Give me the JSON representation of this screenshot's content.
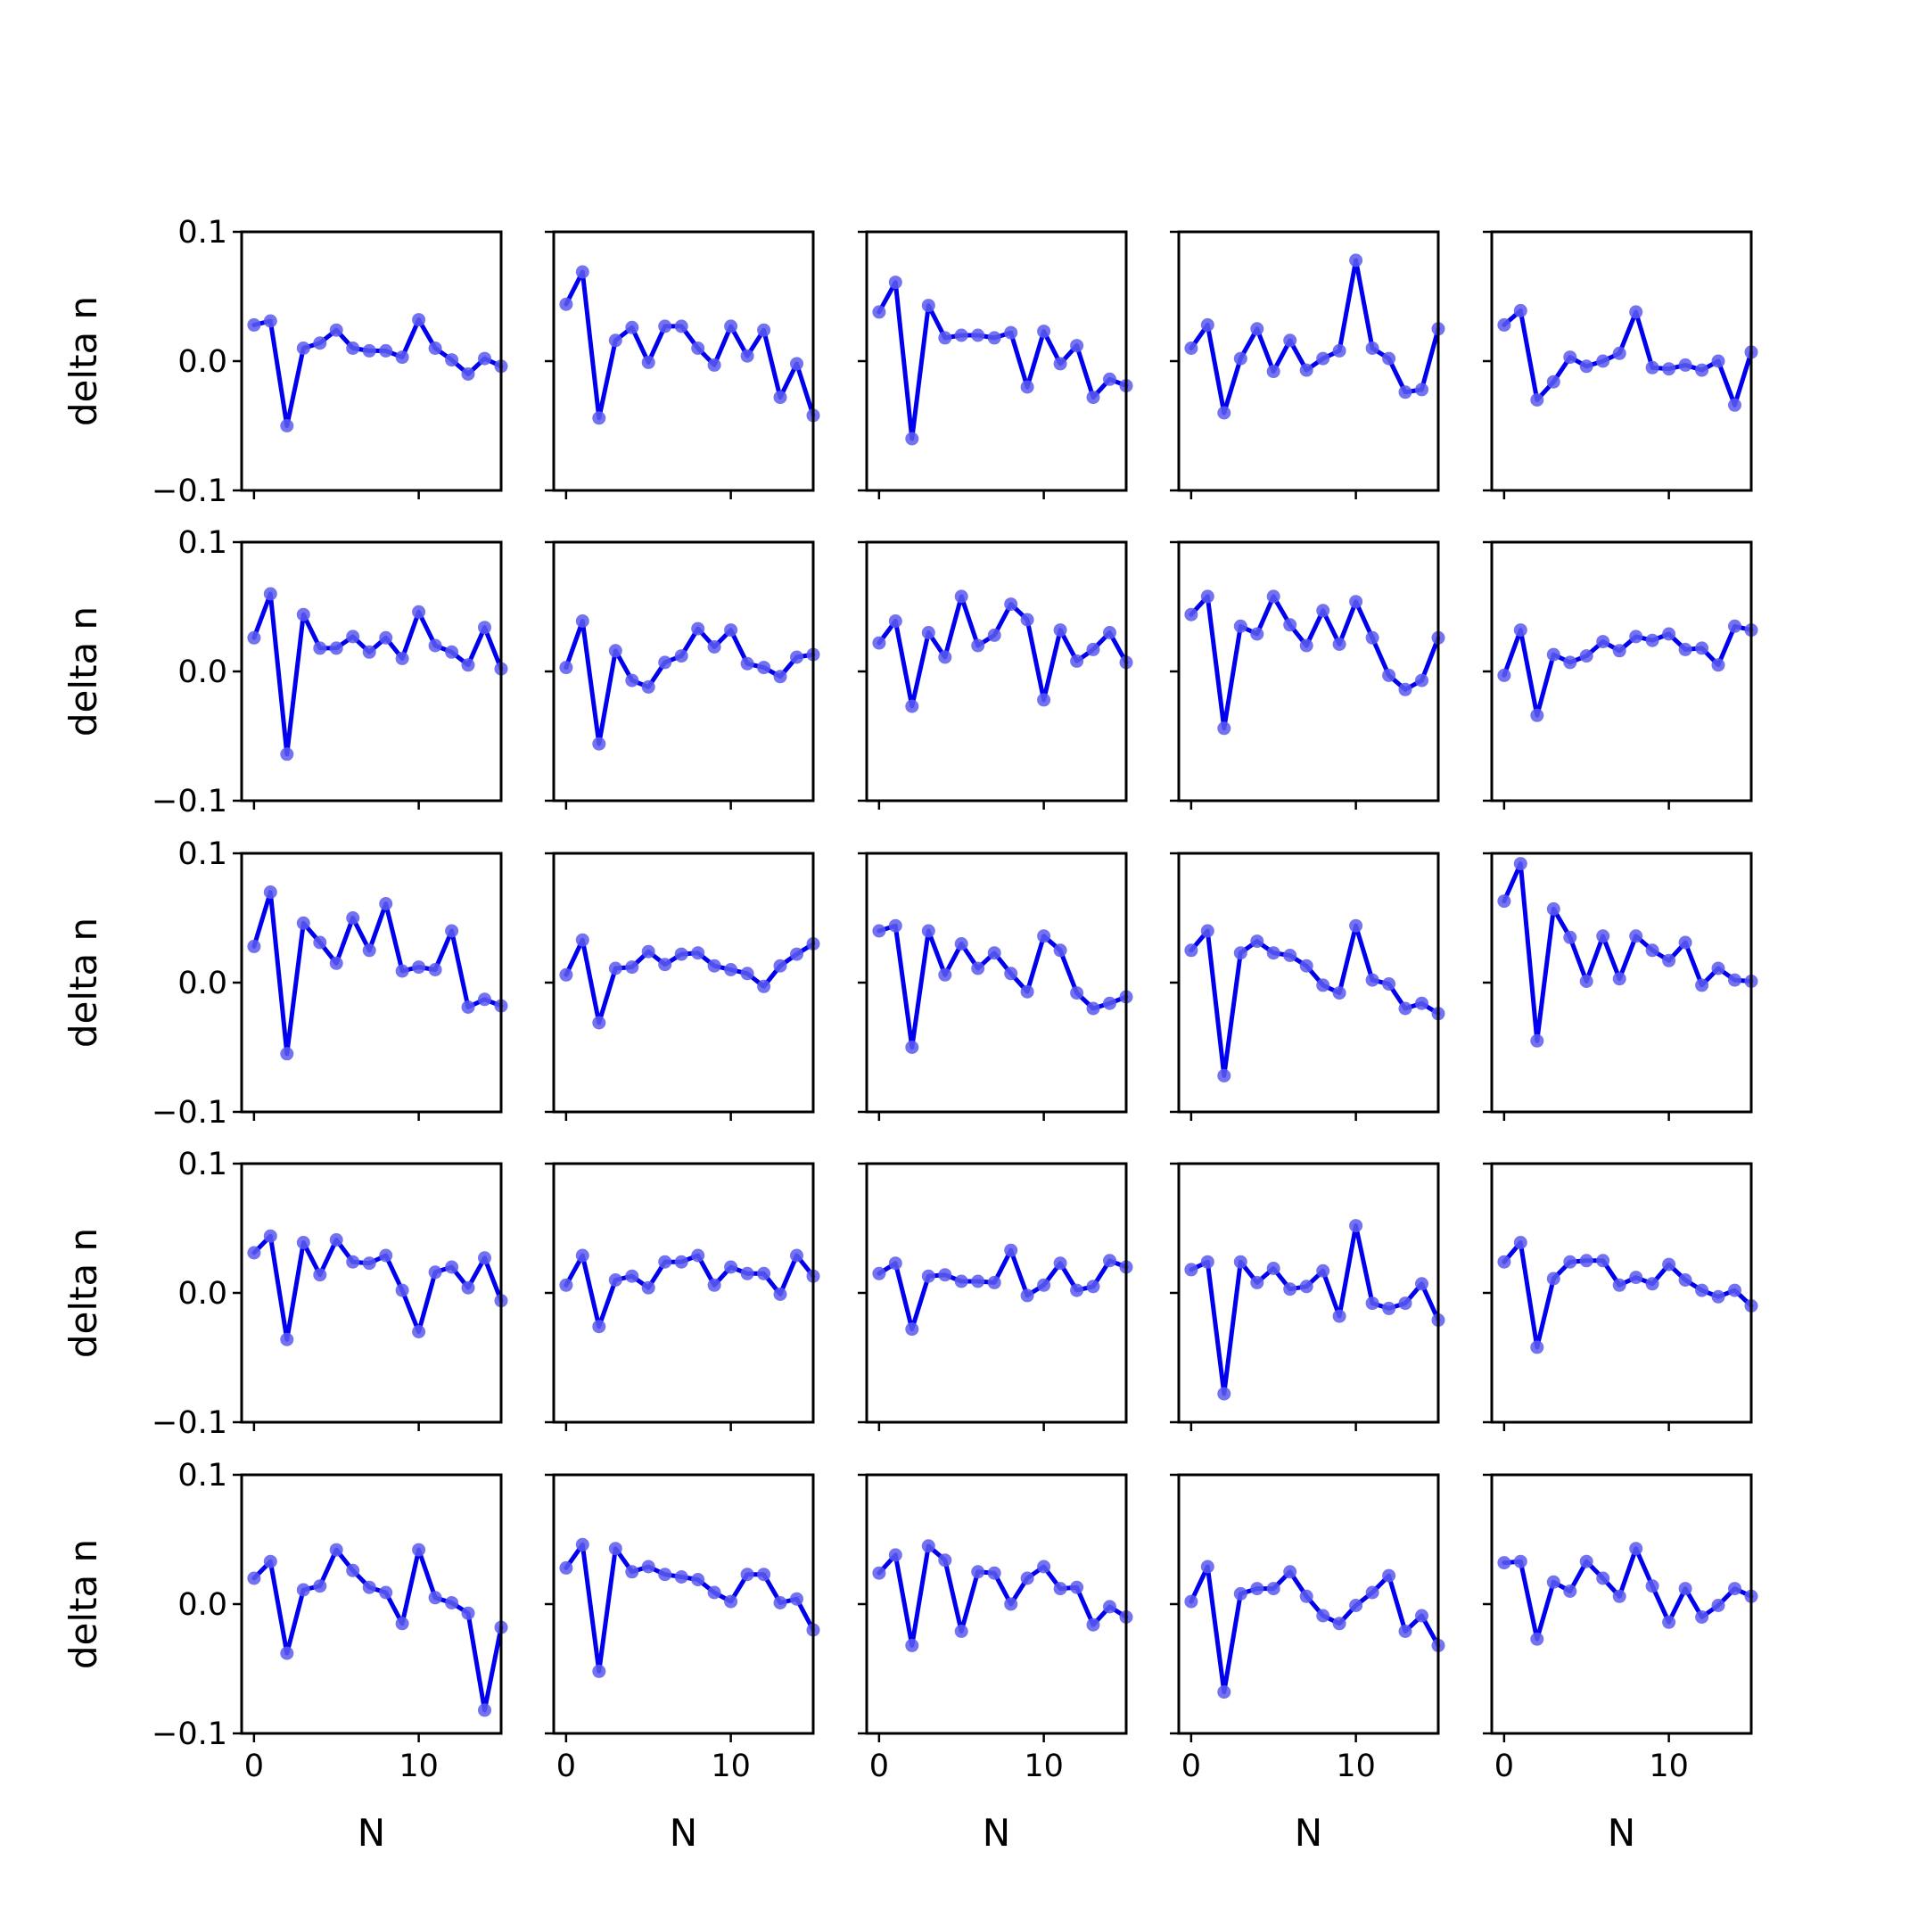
{
  "chart_data": {
    "type": "line",
    "layout": {
      "rows": 5,
      "cols": 5
    },
    "xlabel": "N",
    "ylabel": "delta n",
    "xlim": [
      -0.75,
      15.0
    ],
    "ylim": [
      -0.1,
      0.1
    ],
    "xticks": [
      0,
      10
    ],
    "yticks": [
      -0.1,
      0.0,
      0.1
    ],
    "xtick_labels": [
      "0",
      "10"
    ],
    "ytick_labels": [
      "−0.1",
      "0.0",
      "0.1"
    ],
    "x": [
      0,
      1,
      2,
      3,
      4,
      5,
      6,
      7,
      8,
      9,
      10,
      11,
      12,
      13,
      14,
      15
    ],
    "colors": {
      "line": "#0000ee",
      "marker": "#5b5bf0"
    },
    "panels": [
      {
        "values": [
          0.028,
          0.031,
          -0.05,
          0.01,
          0.014,
          0.024,
          0.01,
          0.008,
          0.008,
          0.003,
          0.032,
          0.01,
          0.001,
          -0.01,
          0.002,
          -0.004
        ]
      },
      {
        "values": [
          0.044,
          0.069,
          -0.044,
          0.016,
          0.026,
          -0.001,
          0.027,
          0.027,
          0.01,
          -0.003,
          0.027,
          0.004,
          0.024,
          -0.028,
          -0.002,
          -0.042
        ]
      },
      {
        "values": [
          0.038,
          0.061,
          -0.06,
          0.043,
          0.018,
          0.02,
          0.02,
          0.018,
          0.022,
          -0.02,
          0.023,
          -0.002,
          0.012,
          -0.028,
          -0.014,
          -0.019
        ]
      },
      {
        "values": [
          0.01,
          0.028,
          -0.04,
          0.002,
          0.025,
          -0.008,
          0.016,
          -0.007,
          0.002,
          0.008,
          0.078,
          0.01,
          0.002,
          -0.024,
          -0.022,
          0.025
        ]
      },
      {
        "values": [
          0.028,
          0.039,
          -0.03,
          -0.016,
          0.003,
          -0.004,
          0.0,
          0.006,
          0.038,
          -0.005,
          -0.006,
          -0.003,
          -0.007,
          0.0,
          -0.034,
          0.007
        ]
      },
      {
        "values": [
          0.026,
          0.06,
          -0.064,
          0.044,
          0.018,
          0.018,
          0.027,
          0.015,
          0.026,
          0.01,
          0.046,
          0.02,
          0.015,
          0.005,
          0.034,
          0.002
        ]
      },
      {
        "values": [
          0.003,
          0.039,
          -0.056,
          0.016,
          -0.007,
          -0.012,
          0.007,
          0.012,
          0.033,
          0.019,
          0.032,
          0.006,
          0.003,
          -0.004,
          0.011,
          0.013
        ]
      },
      {
        "values": [
          0.022,
          0.039,
          -0.027,
          0.03,
          0.011,
          0.058,
          0.02,
          0.028,
          0.052,
          0.04,
          -0.022,
          0.032,
          0.008,
          0.017,
          0.03,
          0.007
        ]
      },
      {
        "values": [
          0.044,
          0.058,
          -0.044,
          0.035,
          0.029,
          0.058,
          0.036,
          0.02,
          0.047,
          0.021,
          0.054,
          0.026,
          -0.003,
          -0.014,
          -0.007,
          0.026
        ]
      },
      {
        "values": [
          -0.003,
          0.032,
          -0.034,
          0.013,
          0.007,
          0.012,
          0.023,
          0.016,
          0.027,
          0.024,
          0.029,
          0.017,
          0.018,
          0.005,
          0.035,
          0.032
        ]
      },
      {
        "values": [
          0.028,
          0.07,
          -0.055,
          0.046,
          0.031,
          0.015,
          0.05,
          0.025,
          0.061,
          0.009,
          0.012,
          0.01,
          0.04,
          -0.019,
          -0.013,
          -0.018
        ]
      },
      {
        "values": [
          0.006,
          0.033,
          -0.031,
          0.011,
          0.012,
          0.024,
          0.014,
          0.022,
          0.023,
          0.013,
          0.01,
          0.007,
          -0.003,
          0.013,
          0.022,
          0.03
        ]
      },
      {
        "values": [
          0.04,
          0.044,
          -0.05,
          0.04,
          0.006,
          0.03,
          0.011,
          0.023,
          0.007,
          -0.007,
          0.036,
          0.025,
          -0.008,
          -0.02,
          -0.016,
          -0.011
        ]
      },
      {
        "values": [
          0.025,
          0.04,
          -0.072,
          0.023,
          0.032,
          0.023,
          0.021,
          0.013,
          -0.002,
          -0.008,
          0.044,
          0.002,
          -0.001,
          -0.02,
          -0.016,
          -0.024
        ]
      },
      {
        "values": [
          0.063,
          0.092,
          -0.045,
          0.057,
          0.035,
          0.001,
          0.036,
          0.003,
          0.036,
          0.025,
          0.017,
          0.031,
          -0.002,
          0.011,
          0.002,
          0.001
        ]
      },
      {
        "values": [
          0.031,
          0.044,
          -0.036,
          0.039,
          0.014,
          0.041,
          0.024,
          0.023,
          0.029,
          0.002,
          -0.03,
          0.016,
          0.02,
          0.004,
          0.027,
          -0.006
        ]
      },
      {
        "values": [
          0.006,
          0.029,
          -0.026,
          0.01,
          0.013,
          0.004,
          0.024,
          0.024,
          0.029,
          0.006,
          0.02,
          0.015,
          0.015,
          -0.001,
          0.029,
          0.013
        ]
      },
      {
        "values": [
          0.015,
          0.023,
          -0.028,
          0.013,
          0.014,
          0.009,
          0.009,
          0.008,
          0.033,
          -0.002,
          0.006,
          0.023,
          0.002,
          0.005,
          0.025,
          0.02
        ]
      },
      {
        "values": [
          0.018,
          0.024,
          -0.078,
          0.024,
          0.008,
          0.019,
          0.003,
          0.005,
          0.017,
          -0.018,
          0.052,
          -0.008,
          -0.012,
          -0.008,
          0.007,
          -0.021
        ]
      },
      {
        "values": [
          0.024,
          0.039,
          -0.042,
          0.011,
          0.024,
          0.025,
          0.025,
          0.006,
          0.012,
          0.007,
          0.022,
          0.01,
          0.002,
          -0.003,
          0.002,
          -0.01
        ]
      },
      {
        "values": [
          0.02,
          0.033,
          -0.038,
          0.011,
          0.014,
          0.042,
          0.026,
          0.013,
          0.009,
          -0.015,
          0.042,
          0.005,
          0.001,
          -0.007,
          -0.082,
          -0.018
        ]
      },
      {
        "values": [
          0.028,
          0.046,
          -0.052,
          0.043,
          0.025,
          0.029,
          0.023,
          0.021,
          0.019,
          0.009,
          0.002,
          0.023,
          0.023,
          0.001,
          0.004,
          -0.02
        ]
      },
      {
        "values": [
          0.024,
          0.038,
          -0.032,
          0.045,
          0.034,
          -0.021,
          0.025,
          0.024,
          0.0,
          0.02,
          0.029,
          0.012,
          0.013,
          -0.016,
          -0.002,
          -0.01
        ]
      },
      {
        "values": [
          0.002,
          0.029,
          -0.068,
          0.008,
          0.012,
          0.012,
          0.025,
          0.006,
          -0.009,
          -0.015,
          -0.001,
          0.009,
          0.022,
          -0.021,
          -0.009,
          -0.032
        ]
      },
      {
        "values": [
          0.032,
          0.033,
          -0.027,
          0.017,
          0.01,
          0.033,
          0.02,
          0.006,
          0.043,
          0.014,
          -0.014,
          0.012,
          -0.01,
          -0.001,
          0.012,
          0.006
        ]
      }
    ]
  }
}
